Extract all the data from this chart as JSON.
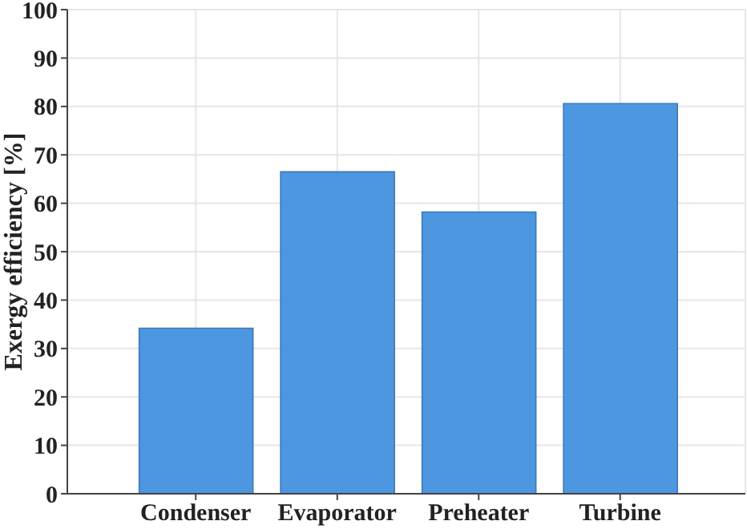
{
  "chart_data": {
    "type": "bar",
    "ylabel": "Exergy efficiency [%]",
    "categories": [
      "Condenser",
      "Evaporator",
      "Preheater",
      "Turbine"
    ],
    "values": [
      34.2,
      66.5,
      58.2,
      80.6
    ],
    "color": "#4d97e1",
    "ylim": [
      0,
      100
    ],
    "yticks": [
      0,
      10,
      20,
      30,
      40,
      50,
      60,
      70,
      80,
      90,
      100
    ],
    "grid": true
  }
}
